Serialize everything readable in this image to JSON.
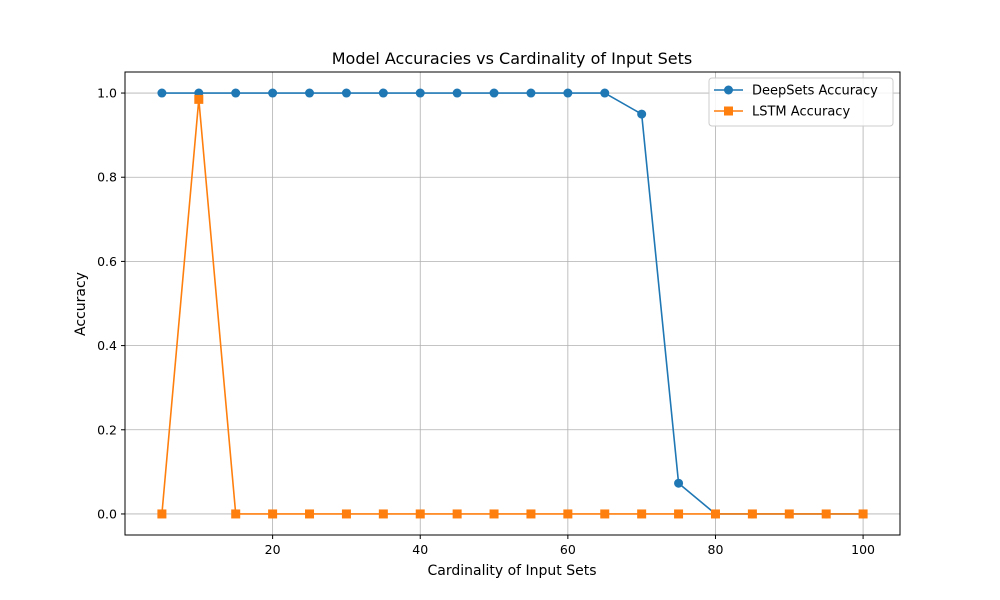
{
  "chart_data": {
    "type": "line",
    "title": "Model Accuracies vs Cardinality of Input Sets",
    "xlabel": "Cardinality of Input Sets",
    "ylabel": "Accuracy",
    "xlim": [
      0,
      105
    ],
    "ylim": [
      -0.05,
      1.05
    ],
    "xticks": [
      20,
      40,
      60,
      80,
      100
    ],
    "yticks": [
      0.0,
      0.2,
      0.4,
      0.6,
      0.8,
      1.0
    ],
    "xtick_labels": [
      "20",
      "40",
      "60",
      "80",
      "100"
    ],
    "ytick_labels": [
      "0.0",
      "0.2",
      "0.4",
      "0.6",
      "0.8",
      "1.0"
    ],
    "grid": true,
    "legend_position": "top-right",
    "x": [
      5,
      10,
      15,
      20,
      25,
      30,
      35,
      40,
      45,
      50,
      55,
      60,
      65,
      70,
      75,
      80,
      85,
      90,
      95,
      100
    ],
    "series": [
      {
        "name": "DeepSets Accuracy",
        "color": "#1f77b4",
        "marker": "circle",
        "values": [
          1.0,
          1.0,
          1.0,
          1.0,
          1.0,
          1.0,
          1.0,
          1.0,
          1.0,
          1.0,
          1.0,
          1.0,
          1.0,
          0.95,
          0.073,
          0.0,
          0.0,
          0.0,
          0.0,
          0.0
        ]
      },
      {
        "name": "LSTM Accuracy",
        "color": "#ff7f0e",
        "marker": "square",
        "values": [
          0.0,
          0.985,
          0.0,
          0.0,
          0.0,
          0.0,
          0.0,
          0.0,
          0.0,
          0.0,
          0.0,
          0.0,
          0.0,
          0.0,
          0.0,
          0.0,
          0.0,
          0.0,
          0.0,
          0.0
        ]
      }
    ]
  }
}
